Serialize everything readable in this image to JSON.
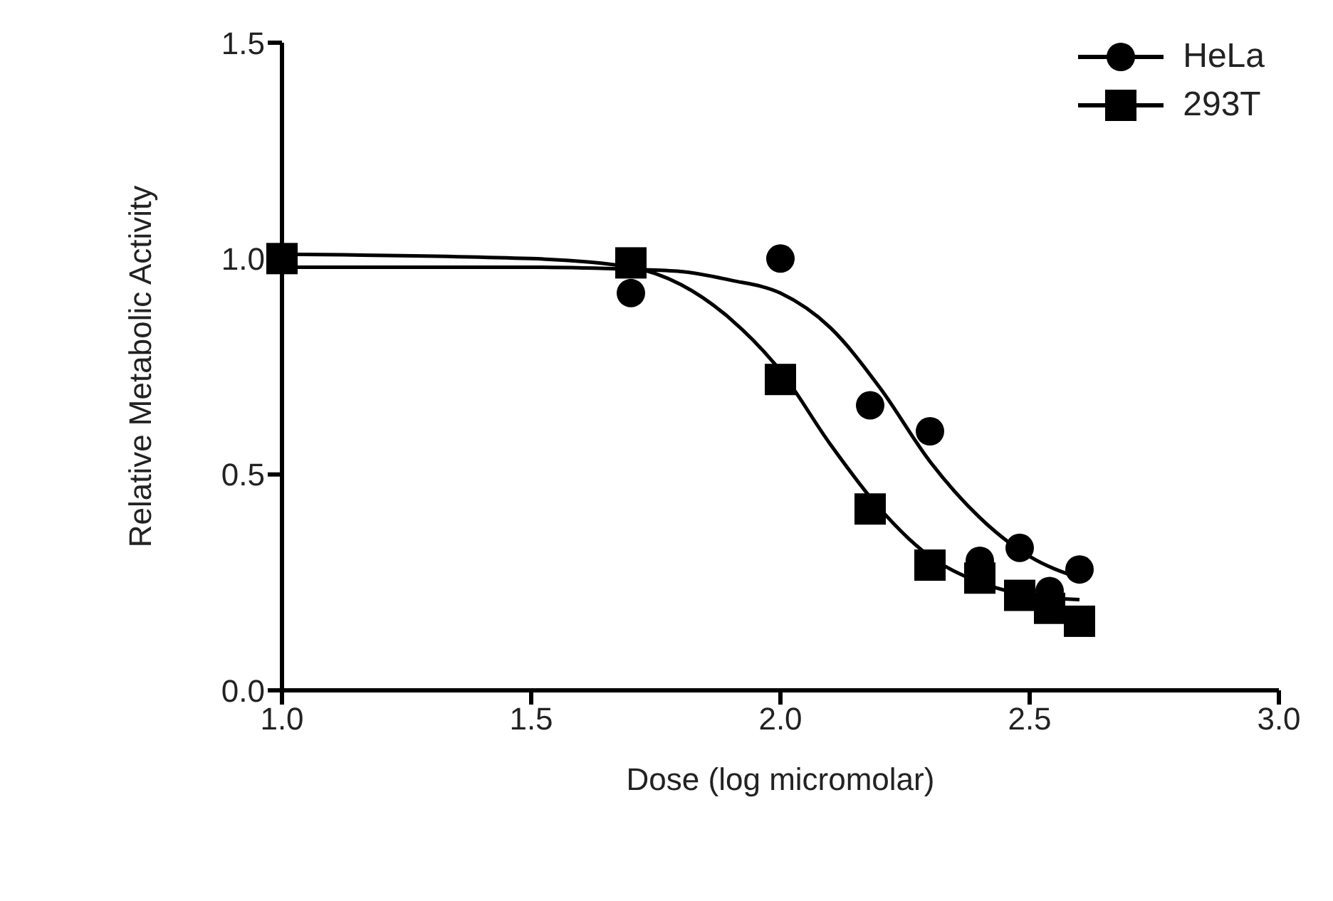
{
  "chart_data": {
    "type": "scatter",
    "xlabel": "Dose (log micromolar)",
    "ylabel": "Relative Metabolic Activity",
    "xlim": [
      1.0,
      3.0
    ],
    "xticks": [
      {
        "value": 1.0,
        "label": "1.0"
      },
      {
        "value": 1.5,
        "label": "1.5"
      },
      {
        "value": 2.0,
        "label": "2.0"
      },
      {
        "value": 2.5,
        "label": "2.5"
      },
      {
        "value": 3.0,
        "label": "3.0"
      }
    ],
    "ylim": [
      0.0,
      1.5
    ],
    "yticks": [
      {
        "value": 0.0,
        "label": "0.0"
      },
      {
        "value": 0.5,
        "label": "0.5"
      },
      {
        "value": 1.0,
        "label": "1.0"
      },
      {
        "value": 1.5,
        "label": "1.5"
      }
    ],
    "grid": false,
    "legend": "top right",
    "series": [
      {
        "name": "HeLa",
        "marker": "circle",
        "color": "#000000",
        "x": [
          1.7,
          2.0,
          2.18,
          2.3,
          2.4,
          2.48,
          2.54,
          2.6
        ],
        "values": [
          0.92,
          1.0,
          0.66,
          0.6,
          0.3,
          0.33,
          0.23,
          0.28
        ]
      },
      {
        "name": "293T",
        "marker": "square",
        "color": "#000000",
        "x": [
          1.0,
          1.7,
          2.0,
          2.18,
          2.3,
          2.4,
          2.48,
          2.54,
          2.6
        ],
        "values": [
          1.0,
          0.99,
          0.72,
          0.42,
          0.29,
          0.26,
          0.22,
          0.19,
          0.16
        ]
      },
      {
        "type": "line",
        "marker": "none",
        "line_style": "solid",
        "color": "#000000",
        "x": [
          1.0,
          1.5,
          1.7,
          1.8,
          1.9,
          2.0,
          2.1,
          2.2,
          2.3,
          2.4,
          2.5,
          2.6
        ],
        "values": [
          0.98,
          0.98,
          0.975,
          0.97,
          0.95,
          0.92,
          0.84,
          0.7,
          0.53,
          0.4,
          0.31,
          0.26
        ]
      },
      {
        "type": "line",
        "marker": "none",
        "line_style": "solid",
        "color": "#000000",
        "x": [
          1.0,
          1.5,
          1.7,
          1.8,
          1.9,
          2.0,
          2.1,
          2.2,
          2.3,
          2.4,
          2.5,
          2.6
        ],
        "values": [
          1.01,
          1.0,
          0.98,
          0.94,
          0.86,
          0.74,
          0.57,
          0.42,
          0.31,
          0.25,
          0.22,
          0.21
        ]
      }
    ]
  }
}
